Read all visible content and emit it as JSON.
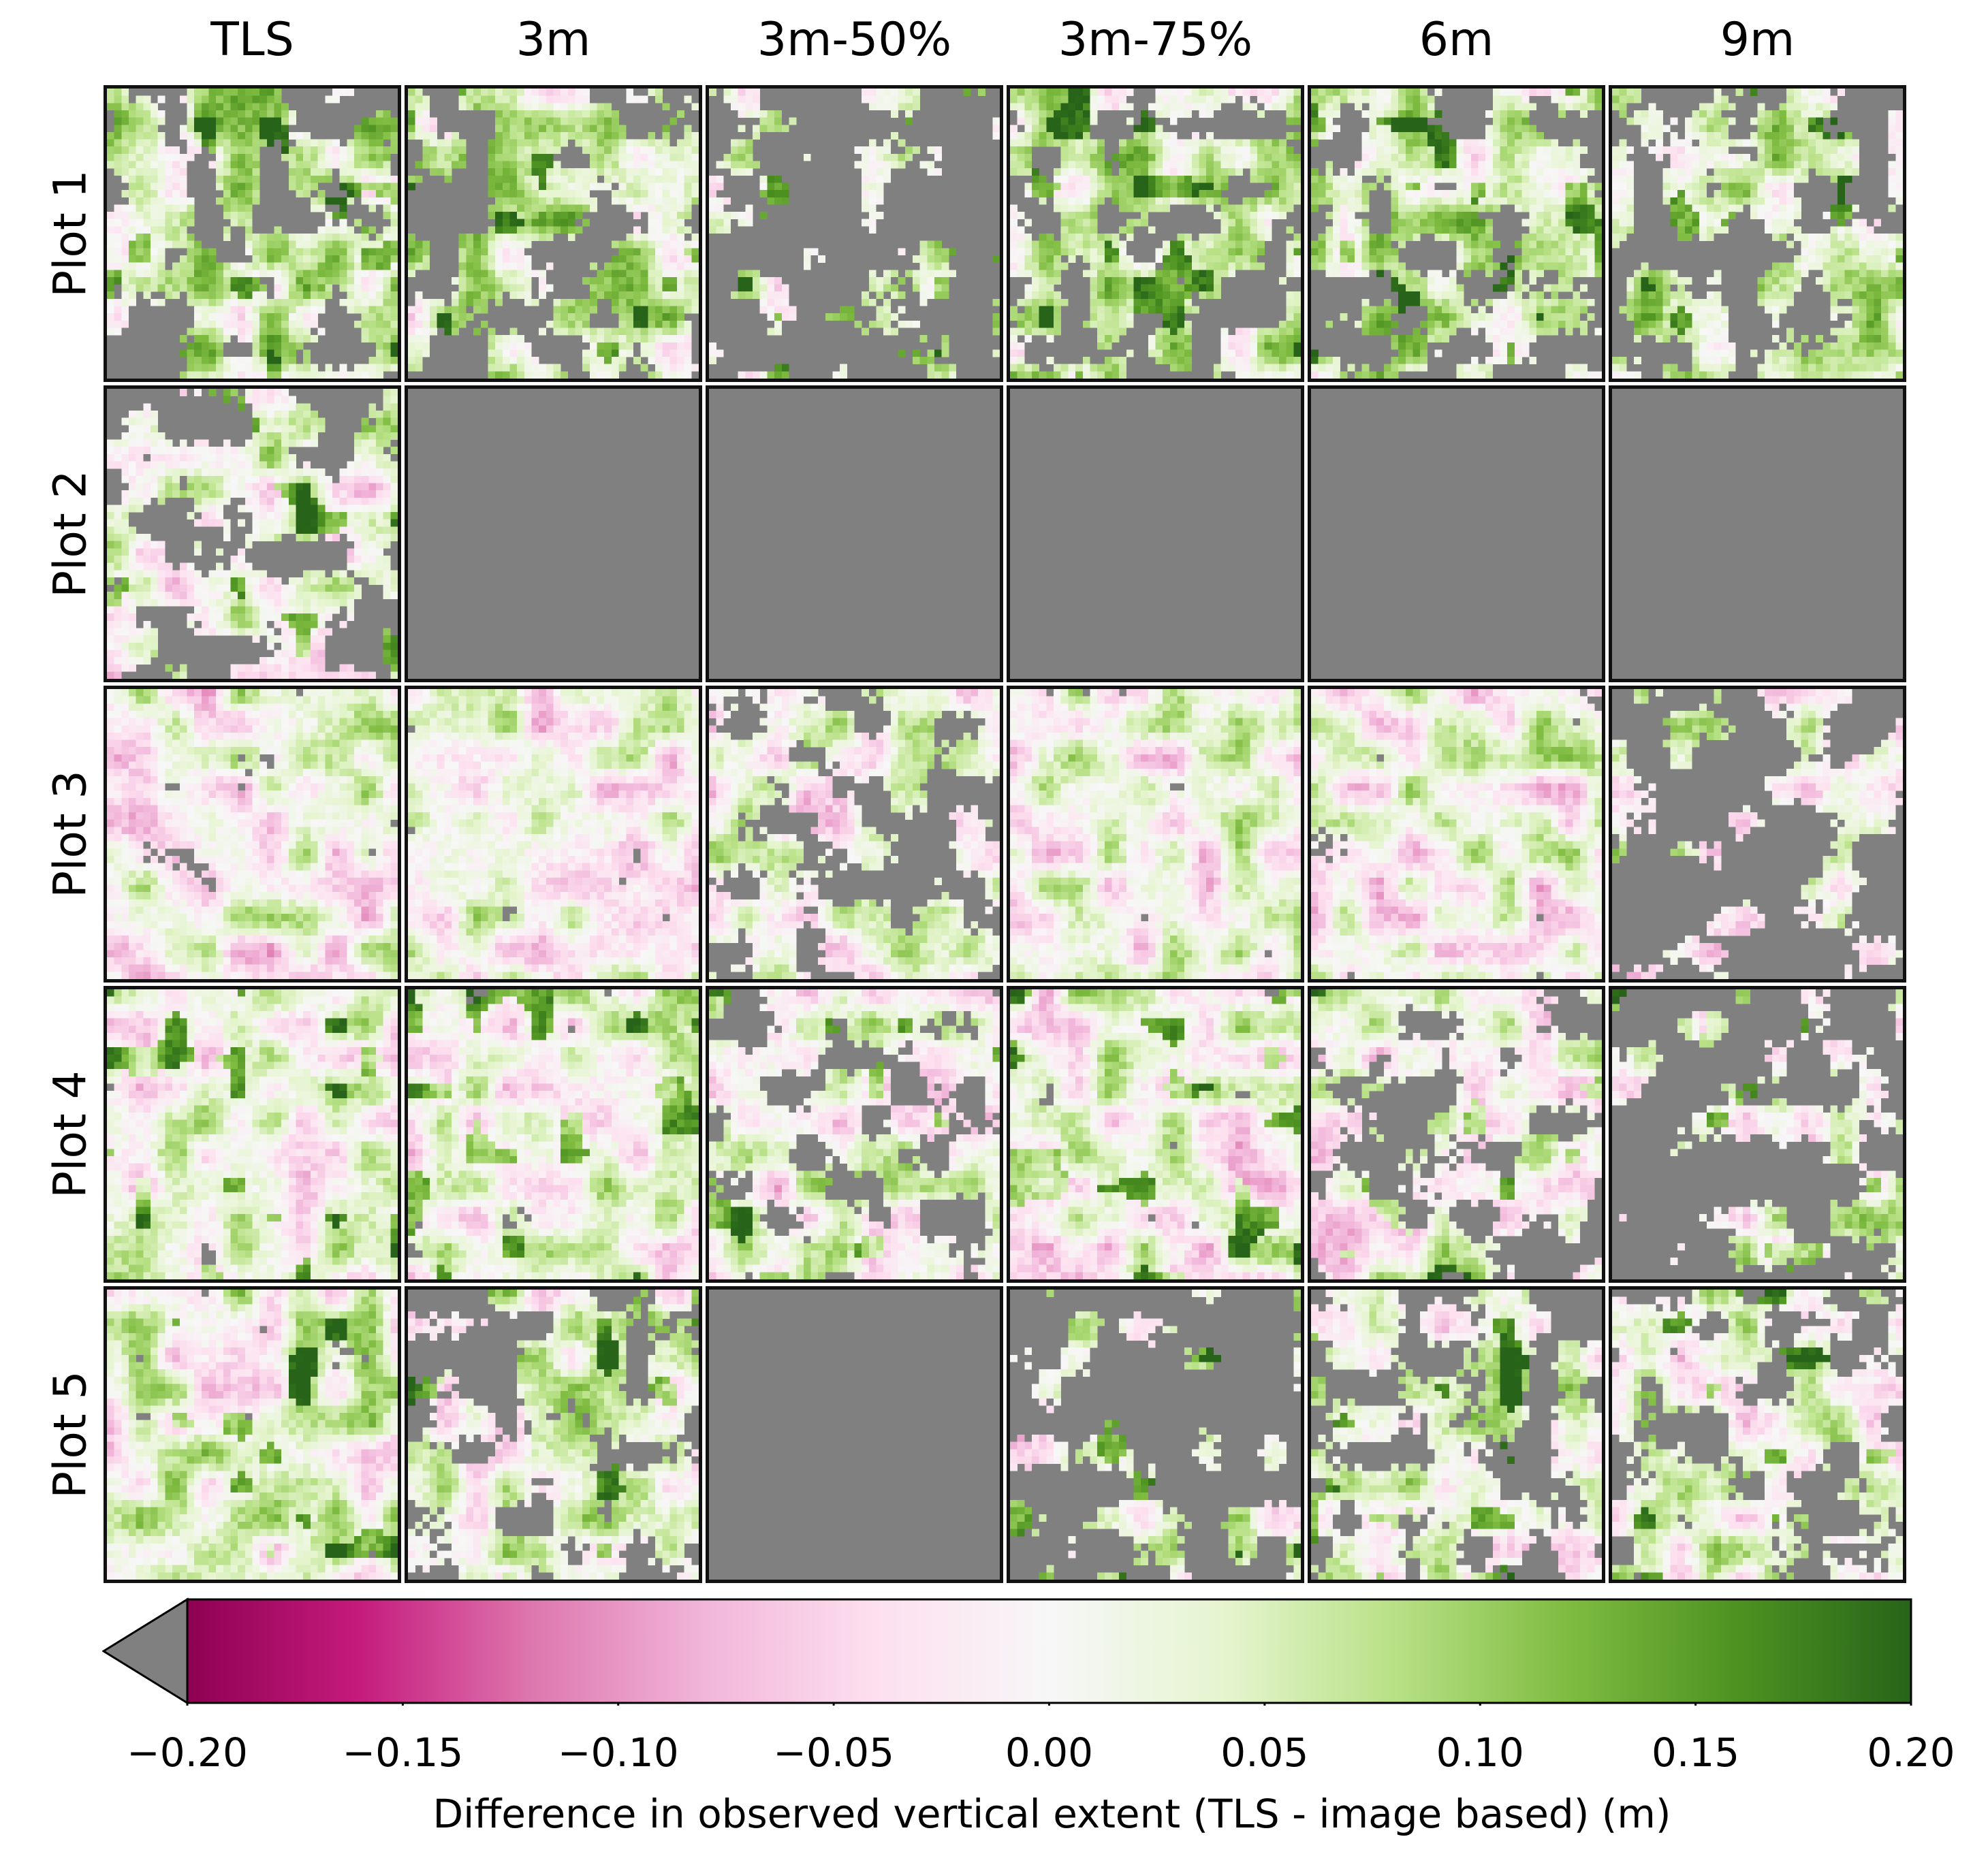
{
  "chart_data": {
    "type": "heatmap",
    "layout": "grid",
    "columns": [
      "TLS",
      "3m",
      "3m-50%",
      "3m-75%",
      "6m",
      "9m"
    ],
    "rows": [
      "Plot 1",
      "Plot 2",
      "Plot 3",
      "Plot 4",
      "Plot 5"
    ],
    "panel_content": [
      [
        "mixed",
        "mixed",
        "mostly_nodata",
        "mixed",
        "mixed",
        "mixed"
      ],
      [
        "mixed",
        "nodata",
        "nodata",
        "nodata",
        "nodata",
        "nodata"
      ],
      [
        "mostly_data",
        "mostly_data",
        "mixed",
        "mostly_data",
        "mostly_data",
        "mostly_nodata"
      ],
      [
        "mostly_data",
        "mostly_data",
        "mixed",
        "mostly_data",
        "mixed",
        "mostly_nodata"
      ],
      [
        "mostly_data",
        "mixed",
        "nodata",
        "mostly_nodata",
        "mixed",
        "mixed"
      ]
    ],
    "colorbar": {
      "colormap": "PiYG",
      "vmin": -0.2,
      "vmax": 0.2,
      "extend": "min",
      "under_color": "#808080",
      "orientation": "horizontal",
      "ticks": [
        "−0.20",
        "−0.15",
        "−0.10",
        "−0.05",
        "0.00",
        "0.05",
        "0.10",
        "0.15",
        "0.20"
      ],
      "label": "Difference in observed vertical extent (TLS - image based) (m)"
    },
    "nodata_color": "#808080"
  }
}
